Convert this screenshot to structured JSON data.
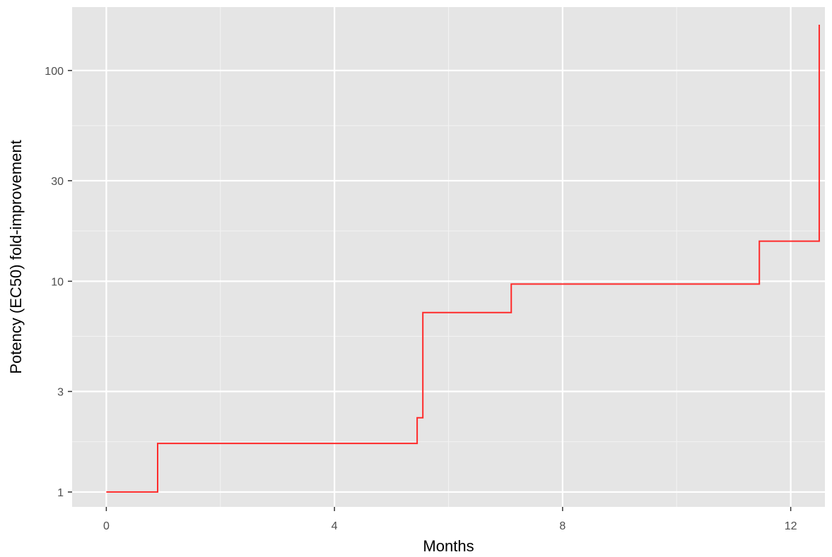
{
  "chart_data": {
    "type": "line",
    "title": "",
    "xlabel": "Months",
    "ylabel": "Potency (EC50) fold-improvement",
    "x_scale": "linear",
    "y_scale": "log",
    "xlim": [
      -0.6,
      12.6
    ],
    "ylim": [
      0.85,
      200
    ],
    "x_ticks": [
      0,
      4,
      8,
      12
    ],
    "x_tick_labels": [
      "0",
      "4",
      "8",
      "12"
    ],
    "y_ticks": [
      1,
      3,
      10,
      30,
      100
    ],
    "y_tick_labels": [
      "1",
      "3",
      "10",
      "30",
      "100"
    ],
    "grid": true,
    "legend": "none",
    "step": "post",
    "series": [
      {
        "x": [
          0,
          0.9,
          5.45,
          5.55,
          7.1,
          11.45,
          12.5
        ],
        "y": [
          1.0,
          1.7,
          2.25,
          7.1,
          9.7,
          15.5,
          165
        ],
        "color": "#ff2a2a"
      }
    ],
    "colors": {
      "panel_background": "#e5e5e5",
      "grid_major": "#ffffff",
      "grid_minor": "#f2f2f2",
      "line": "#ff2a2a"
    }
  }
}
